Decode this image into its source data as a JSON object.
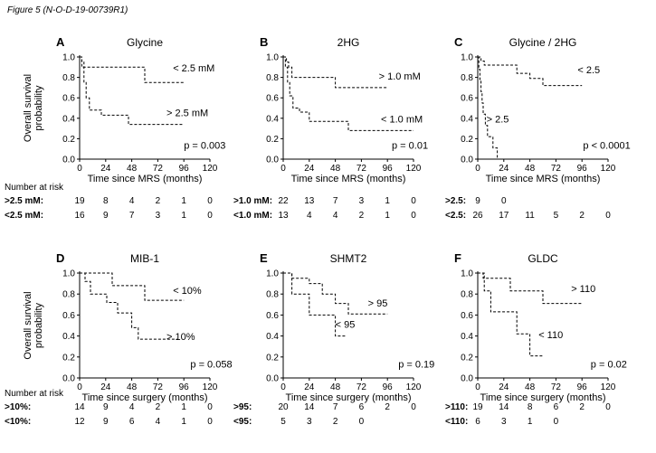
{
  "figure_caption": "Figure 5 (N-O-D-19-00739R1)",
  "y_axis_label_lines": [
    "Overall survival",
    "probability"
  ],
  "risk_header": "Number at risk",
  "chart_data": [
    {
      "type": "line",
      "letter": "A",
      "title": "Glycine",
      "xlabel": "Time since MRS (months)",
      "ylabel": "Overall survival probability",
      "xlim": [
        0,
        120
      ],
      "ylim": [
        0,
        1
      ],
      "xticks": [
        "0",
        "24",
        "48",
        "72",
        "96",
        "120"
      ],
      "yticks": [
        "0.0",
        "0.2",
        "0.4",
        "0.6",
        "0.8",
        "1.0"
      ],
      "series": [
        {
          "name": "< 2.5 mM",
          "x": [
            0,
            2,
            4,
            5,
            8,
            60,
            96
          ],
          "y": [
            1.0,
            0.95,
            0.9,
            0.9,
            0.9,
            0.75,
            0.75
          ]
        },
        {
          "name": "> 2.5 mM",
          "x": [
            0,
            2,
            4,
            6,
            9,
            14,
            20,
            45,
            60,
            96
          ],
          "y": [
            1.0,
            0.9,
            0.75,
            0.6,
            0.48,
            0.48,
            0.43,
            0.34,
            0.34,
            0.34
          ]
        }
      ],
      "annotations": [
        "< 2.5 mM",
        "> 2.5 mM",
        "p = 0.003"
      ],
      "risk_table": {
        "rows": [
          {
            "label": ">2.5 mM:",
            "counts": [
              "19",
              "8",
              "4",
              "2",
              "1",
              "0"
            ]
          },
          {
            "label": "<2.5 mM:",
            "counts": [
              "16",
              "9",
              "7",
              "3",
              "1",
              "0"
            ]
          }
        ]
      }
    },
    {
      "type": "line",
      "letter": "B",
      "title": "2HG",
      "xlabel": "Time since MRS (months)",
      "ylabel": "Overall survival probability",
      "xlim": [
        0,
        120
      ],
      "ylim": [
        0,
        1
      ],
      "xticks": [
        "0",
        "24",
        "48",
        "72",
        "96",
        "120"
      ],
      "yticks": [
        "0.0",
        "0.2",
        "0.4",
        "0.6",
        "0.8",
        "1.0"
      ],
      "series": [
        {
          "name": "> 1.0 mM",
          "x": [
            0,
            3,
            5,
            8,
            24,
            48,
            96
          ],
          "y": [
            1.0,
            0.95,
            0.9,
            0.8,
            0.8,
            0.7,
            0.7
          ]
        },
        {
          "name": "< 1.0 mM",
          "x": [
            0,
            2,
            4,
            6,
            9,
            15,
            24,
            60,
            120
          ],
          "y": [
            1.0,
            0.9,
            0.75,
            0.62,
            0.5,
            0.46,
            0.37,
            0.28,
            0.28
          ]
        }
      ],
      "annotations": [
        "> 1.0 mM",
        "< 1.0 mM",
        "p = 0.01"
      ],
      "risk_table": {
        "rows": [
          {
            "label": ">1.0 mM:",
            "counts": [
              "22",
              "13",
              "7",
              "3",
              "1",
              "0"
            ]
          },
          {
            "label": "<1.0 mM:",
            "counts": [
              "13",
              "4",
              "4",
              "2",
              "1",
              "0"
            ]
          }
        ]
      }
    },
    {
      "type": "line",
      "letter": "C",
      "title": "Glycine / 2HG",
      "xlabel": "Time since MRS (months)",
      "ylabel": "Overall survival probability",
      "xlim": [
        0,
        120
      ],
      "ylim": [
        0,
        1
      ],
      "xticks": [
        "0",
        "24",
        "48",
        "72",
        "96",
        "120"
      ],
      "yticks": [
        "0.0",
        "0.2",
        "0.4",
        "0.6",
        "0.8",
        "1.0"
      ],
      "series": [
        {
          "name": "< 2.5",
          "x": [
            0,
            3,
            6,
            24,
            36,
            48,
            60,
            96
          ],
          "y": [
            1.0,
            0.96,
            0.92,
            0.92,
            0.84,
            0.79,
            0.72,
            0.72
          ]
        },
        {
          "name": "> 2.5",
          "x": [
            0,
            1,
            2,
            3,
            4,
            5,
            7,
            9,
            14,
            18
          ],
          "y": [
            1.0,
            0.88,
            0.78,
            0.66,
            0.55,
            0.44,
            0.33,
            0.22,
            0.11,
            0.0
          ]
        }
      ],
      "annotations": [
        "< 2.5",
        "> 2.5",
        "p < 0.0001"
      ],
      "risk_table": {
        "rows": [
          {
            "label": ">2.5:",
            "counts": [
              "9",
              "0",
              "",
              "",
              "",
              ""
            ]
          },
          {
            "label": "<2.5:",
            "counts": [
              "26",
              "17",
              "11",
              "5",
              "2",
              "0"
            ]
          }
        ]
      }
    },
    {
      "type": "line",
      "letter": "D",
      "title": "MIB-1",
      "xlabel": "Time since surgery (months)",
      "ylabel": "Overall survival probability",
      "xlim": [
        0,
        120
      ],
      "ylim": [
        0,
        1
      ],
      "xticks": [
        "0",
        "24",
        "48",
        "72",
        "96",
        "120"
      ],
      "yticks": [
        "0.0",
        "0.2",
        "0.4",
        "0.6",
        "0.8",
        "1.0"
      ],
      "series": [
        {
          "name": "< 10%",
          "x": [
            0,
            30,
            60,
            96
          ],
          "y": [
            1.0,
            0.88,
            0.74,
            0.74
          ]
        },
        {
          "name": "> 10%",
          "x": [
            0,
            5,
            10,
            25,
            35,
            48,
            54,
            90
          ],
          "y": [
            1.0,
            0.92,
            0.8,
            0.72,
            0.62,
            0.48,
            0.37,
            0.37
          ]
        }
      ],
      "annotations": [
        "< 10%",
        "> 10%",
        "p = 0.058"
      ],
      "risk_table": {
        "rows": [
          {
            "label": ">10%:",
            "counts": [
              "14",
              "9",
              "4",
              "2",
              "1",
              "0"
            ]
          },
          {
            "label": "<10%:",
            "counts": [
              "12",
              "9",
              "6",
              "4",
              "1",
              "0"
            ]
          }
        ]
      }
    },
    {
      "type": "line",
      "letter": "E",
      "title": "SHMT2",
      "xlabel": "Time since surgery (months)",
      "ylabel": "Overall survival probability",
      "xlim": [
        0,
        120
      ],
      "ylim": [
        0,
        1
      ],
      "xticks": [
        "0",
        "24",
        "48",
        "72",
        "96",
        "120"
      ],
      "yticks": [
        "0.0",
        "0.2",
        "0.4",
        "0.6",
        "0.8",
        "1.0"
      ],
      "series": [
        {
          "name": "> 95",
          "x": [
            0,
            8,
            24,
            36,
            48,
            60,
            96
          ],
          "y": [
            1.0,
            0.95,
            0.9,
            0.8,
            0.71,
            0.61,
            0.61
          ]
        },
        {
          "name": "< 95",
          "x": [
            0,
            8,
            24,
            48,
            58
          ],
          "y": [
            1.0,
            0.8,
            0.6,
            0.4,
            0.4
          ]
        }
      ],
      "annotations": [
        "> 95",
        "< 95",
        "p = 0.19"
      ],
      "risk_table": {
        "rows": [
          {
            "label": ">95:",
            "counts": [
              "20",
              "14",
              "7",
              "6",
              "2",
              "0"
            ]
          },
          {
            "label": "<95:",
            "counts": [
              "5",
              "3",
              "2",
              "0",
              "",
              ""
            ]
          }
        ]
      }
    },
    {
      "type": "line",
      "letter": "F",
      "title": "GLDC",
      "xlabel": "Time since surgery (months)",
      "ylabel": "Overall survival probability",
      "xlim": [
        0,
        120
      ],
      "ylim": [
        0,
        1
      ],
      "xticks": [
        "0",
        "24",
        "48",
        "72",
        "96",
        "120"
      ],
      "yticks": [
        "0.0",
        "0.2",
        "0.4",
        "0.6",
        "0.8",
        "1.0"
      ],
      "series": [
        {
          "name": "> 110",
          "x": [
            0,
            5,
            30,
            60,
            96
          ],
          "y": [
            1.0,
            0.95,
            0.83,
            0.71,
            0.71
          ]
        },
        {
          "name": "< 110",
          "x": [
            0,
            6,
            12,
            36,
            48,
            56,
            60
          ],
          "y": [
            1.0,
            0.83,
            0.63,
            0.42,
            0.21,
            0.21,
            0.21
          ]
        }
      ],
      "annotations": [
        "> 110",
        "< 110",
        "p = 0.02"
      ],
      "risk_table": {
        "rows": [
          {
            "label": ">110:",
            "counts": [
              "19",
              "14",
              "8",
              "6",
              "2",
              "0"
            ]
          },
          {
            "label": "<110:",
            "counts": [
              "6",
              "3",
              "1",
              "0",
              "",
              ""
            ]
          }
        ]
      }
    }
  ]
}
